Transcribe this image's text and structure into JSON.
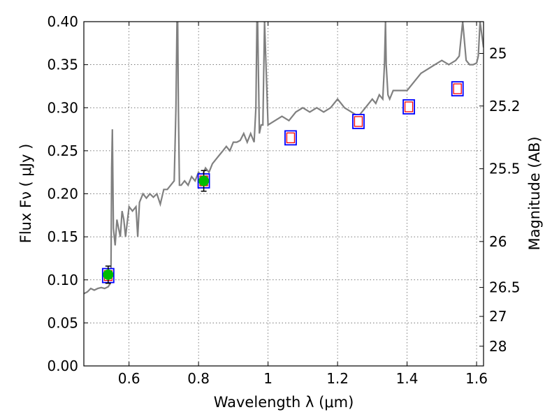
{
  "chart_data": {
    "type": "line",
    "xlabel": "Wavelength  λ (μm)",
    "ylabel": "Flux  Fν  ( μJy )",
    "ylabel_right": "Magnitude (AB)",
    "xlim": [
      0.47,
      1.62
    ],
    "ylim": [
      0.0,
      0.4
    ],
    "grid": true,
    "x_ticks": [
      0.6,
      0.8,
      1.0,
      1.2,
      1.4,
      1.6
    ],
    "x_tick_labels": [
      "0.6",
      "0.8",
      "1",
      "1.2",
      "1.4",
      "1.6"
    ],
    "y_ticks": [
      0.0,
      0.05,
      0.1,
      0.15,
      0.2,
      0.25,
      0.3,
      0.35,
      0.4
    ],
    "y_tick_labels": [
      "0.00",
      "0.05",
      "0.10",
      "0.15",
      "0.20",
      "0.25",
      "0.30",
      "0.35",
      "0.40"
    ],
    "right_ticks": [
      {
        "label": "25",
        "mag": 25.0
      },
      {
        "label": "25.2",
        "mag": 25.2
      },
      {
        "label": "25.5",
        "mag": 25.5
      },
      {
        "label": "26",
        "mag": 26.0
      },
      {
        "label": "26.5",
        "mag": 26.5
      },
      {
        "label": "27",
        "mag": 27.0
      },
      {
        "label": "28",
        "mag": 28.0
      }
    ],
    "colors": {
      "model": "#808080",
      "observed_fill": "#00bb00",
      "box_outer": "#0000ff",
      "box_inner": "#ff0000",
      "errorbar": "#000000"
    },
    "series": [
      {
        "kind": "model-sed",
        "x": [
          0.47,
          0.48,
          0.49,
          0.5,
          0.51,
          0.52,
          0.53,
          0.54,
          0.545,
          0.548,
          0.55,
          0.552,
          0.555,
          0.56,
          0.565,
          0.57,
          0.575,
          0.58,
          0.585,
          0.59,
          0.6,
          0.61,
          0.62,
          0.625,
          0.63,
          0.64,
          0.65,
          0.66,
          0.67,
          0.68,
          0.69,
          0.7,
          0.71,
          0.72,
          0.73,
          0.735,
          0.738,
          0.74,
          0.742,
          0.745,
          0.75,
          0.76,
          0.77,
          0.78,
          0.79,
          0.8,
          0.81,
          0.82,
          0.83,
          0.84,
          0.85,
          0.86,
          0.87,
          0.88,
          0.89,
          0.9,
          0.91,
          0.92,
          0.93,
          0.94,
          0.95,
          0.96,
          0.965,
          0.968,
          0.97,
          0.975,
          0.98,
          0.985,
          0.99,
          1.0,
          1.02,
          1.04,
          1.06,
          1.08,
          1.1,
          1.12,
          1.14,
          1.16,
          1.18,
          1.2,
          1.21,
          1.22,
          1.24,
          1.26,
          1.28,
          1.3,
          1.31,
          1.32,
          1.33,
          1.335,
          1.338,
          1.34,
          1.345,
          1.35,
          1.36,
          1.38,
          1.4,
          1.42,
          1.44,
          1.46,
          1.48,
          1.5,
          1.52,
          1.54,
          1.55,
          1.56,
          1.57,
          1.58,
          1.59,
          1.6,
          1.605,
          1.61,
          1.62
        ],
        "y": [
          0.084,
          0.086,
          0.09,
          0.088,
          0.09,
          0.091,
          0.09,
          0.092,
          0.095,
          0.11,
          0.23,
          0.275,
          0.16,
          0.14,
          0.17,
          0.16,
          0.15,
          0.18,
          0.17,
          0.15,
          0.185,
          0.18,
          0.185,
          0.15,
          0.19,
          0.2,
          0.195,
          0.2,
          0.196,
          0.2,
          0.188,
          0.205,
          0.205,
          0.21,
          0.215,
          0.3,
          0.4,
          0.4,
          0.3,
          0.21,
          0.21,
          0.215,
          0.21,
          0.22,
          0.215,
          0.225,
          0.22,
          0.23,
          0.225,
          0.235,
          0.24,
          0.245,
          0.25,
          0.255,
          0.25,
          0.26,
          0.26,
          0.262,
          0.27,
          0.26,
          0.27,
          0.26,
          0.3,
          0.4,
          0.4,
          0.27,
          0.28,
          0.28,
          0.4,
          0.28,
          0.285,
          0.29,
          0.285,
          0.295,
          0.3,
          0.295,
          0.3,
          0.295,
          0.3,
          0.31,
          0.305,
          0.3,
          0.295,
          0.29,
          0.3,
          0.31,
          0.305,
          0.315,
          0.31,
          0.35,
          0.4,
          0.35,
          0.315,
          0.31,
          0.32,
          0.32,
          0.32,
          0.33,
          0.34,
          0.345,
          0.35,
          0.355,
          0.35,
          0.355,
          0.36,
          0.4,
          0.355,
          0.35,
          0.35,
          0.352,
          0.36,
          0.4,
          0.37
        ]
      },
      {
        "kind": "observed",
        "x": [
          0.54,
          0.815
        ],
        "y": [
          0.106,
          0.215
        ],
        "yerr": [
          0.01,
          0.012
        ]
      },
      {
        "kind": "synthetic-box",
        "x": [
          0.54,
          0.815,
          1.065,
          1.26,
          1.405,
          1.545
        ],
        "y": [
          0.105,
          0.215,
          0.265,
          0.284,
          0.301,
          0.322
        ]
      }
    ]
  }
}
